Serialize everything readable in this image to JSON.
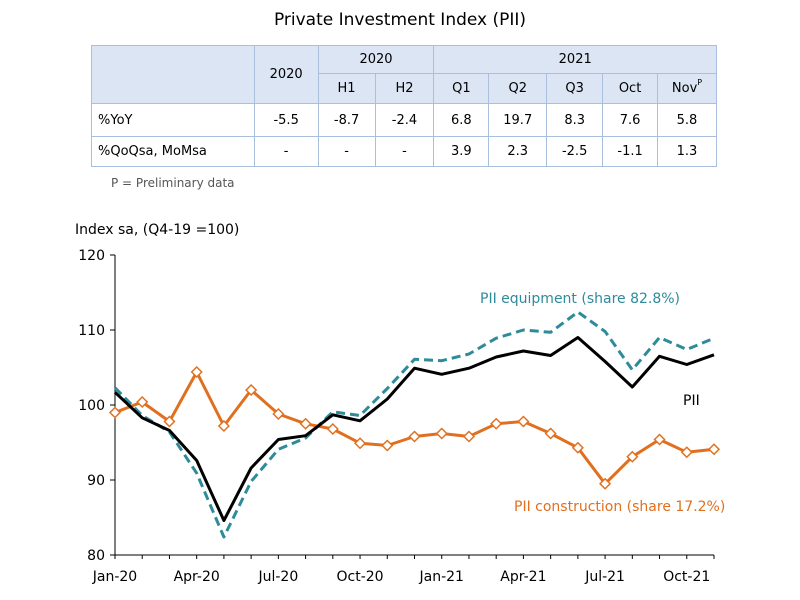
{
  "title": "Private Investment Index (PII)",
  "table": {
    "year_2020": "2020",
    "year_2021": "2021",
    "cols": [
      "2020",
      "H1",
      "H2",
      "Q1",
      "Q2",
      "Q3",
      "Oct",
      "Nov"
    ],
    "nov_superscript": "P",
    "rows": [
      {
        "label": "%YoY",
        "values": [
          "-5.5",
          "-8.7",
          "-2.4",
          "6.8",
          "19.7",
          "8.3",
          "7.6",
          "5.8"
        ]
      },
      {
        "label": "%QoQsa, MoMsa",
        "values": [
          "-",
          "-",
          "-",
          "3.9",
          "2.3",
          "-2.5",
          "-1.1",
          "1.3"
        ]
      }
    ]
  },
  "note": "P = Preliminary data",
  "chart_data": {
    "type": "line",
    "ylabel": "Index sa, (Q4-19 =100)",
    "ylim": [
      80,
      120
    ],
    "yticks": [
      80,
      90,
      100,
      110,
      120
    ],
    "x": [
      "Jan-20",
      "Feb-20",
      "Mar-20",
      "Apr-20",
      "May-20",
      "Jun-20",
      "Jul-20",
      "Aug-20",
      "Sep-20",
      "Oct-20",
      "Nov-20",
      "Dec-20",
      "Jan-21",
      "Feb-21",
      "Mar-21",
      "Apr-21",
      "May-21",
      "Jun-21",
      "Jul-21",
      "Aug-21",
      "Sep-21",
      "Oct-21",
      "Nov-21"
    ],
    "xtick_labels": [
      "Jan-20",
      "Apr-20",
      "Jul-20",
      "Oct-20",
      "Jan-21",
      "Apr-21",
      "Jul-21",
      "Oct-21"
    ],
    "series": [
      {
        "name": "PII",
        "color": "#000000",
        "style": "solid",
        "values": [
          101.7,
          98.3,
          96.6,
          92.6,
          84.6,
          91.6,
          95.4,
          95.9,
          98.7,
          97.9,
          100.8,
          104.9,
          104.1,
          104.9,
          106.4,
          107.2,
          106.6,
          109.0,
          105.8,
          102.4,
          106.5,
          105.4,
          106.7
        ]
      },
      {
        "name": "PII equipment (share 82.8%)",
        "color": "#2e8b9a",
        "style": "dashed",
        "values": [
          102.3,
          98.6,
          96.4,
          90.9,
          82.4,
          89.8,
          94.1,
          95.6,
          99.1,
          98.6,
          102.2,
          106.1,
          105.9,
          106.8,
          108.9,
          110.0,
          109.7,
          112.4,
          109.8,
          104.7,
          109.0,
          107.4,
          108.9
        ]
      },
      {
        "name": "PII construction (share 17.2%)",
        "color": "#e07020",
        "style": "solid-diamond",
        "values": [
          99.0,
          100.4,
          97.8,
          104.4,
          97.2,
          102.0,
          98.8,
          97.5,
          96.8,
          94.9,
          94.6,
          95.8,
          96.2,
          95.8,
          97.5,
          97.8,
          96.2,
          94.3,
          89.5,
          93.1,
          95.4,
          93.7,
          94.1
        ]
      }
    ],
    "labels": {
      "equipment": "PII equipment (share 82.8%)",
      "pii": "PII",
      "construction": "PII construction (share 17.2%)"
    }
  }
}
